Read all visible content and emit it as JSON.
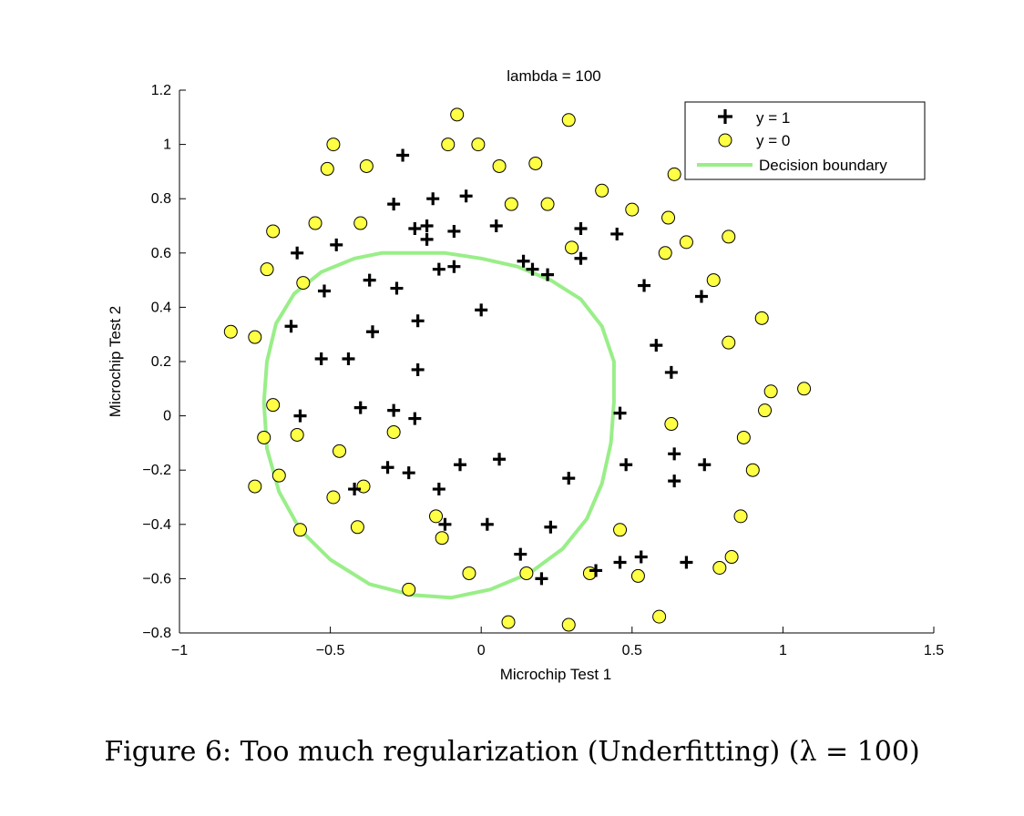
{
  "chart_data": {
    "type": "scatter",
    "title": "lambda = 100",
    "xlabel": "Microchip Test 1",
    "ylabel": "Microchip Test 2",
    "xlim": [
      -1,
      1.5
    ],
    "ylim": [
      -0.8,
      1.2
    ],
    "xticks": [
      -1,
      -0.5,
      0,
      0.5,
      1,
      1.5
    ],
    "xtick_labels": [
      "−1",
      "−0.5",
      "0",
      "0.5",
      "1",
      "1.5"
    ],
    "yticks": [
      -0.8,
      -0.6,
      -0.4,
      -0.2,
      0,
      0.2,
      0.4,
      0.6,
      0.8,
      1,
      1.2
    ],
    "ytick_labels": [
      "−0.8",
      "−0.6",
      "−0.4",
      "−0.2",
      "0",
      "0.2",
      "0.4",
      "0.6",
      "0.8",
      "1",
      "1.2"
    ],
    "grid": false,
    "legend_position": "top-right",
    "series": [
      {
        "name": "y = 1",
        "marker": "plus",
        "color": "#000000",
        "points": [
          [
            -0.26,
            0.96
          ],
          [
            -0.29,
            0.78
          ],
          [
            -0.16,
            0.8
          ],
          [
            -0.05,
            0.81
          ],
          [
            -0.22,
            0.69
          ],
          [
            -0.18,
            0.7
          ],
          [
            -0.09,
            0.68
          ],
          [
            0.05,
            0.7
          ],
          [
            0.33,
            0.69
          ],
          [
            0.45,
            0.67
          ],
          [
            -0.18,
            0.65
          ],
          [
            -0.48,
            0.63
          ],
          [
            -0.61,
            0.6
          ],
          [
            0.14,
            0.57
          ],
          [
            0.17,
            0.54
          ],
          [
            0.22,
            0.52
          ],
          [
            0.33,
            0.58
          ],
          [
            -0.14,
            0.54
          ],
          [
            -0.09,
            0.55
          ],
          [
            -0.37,
            0.5
          ],
          [
            -0.28,
            0.47
          ],
          [
            -0.52,
            0.46
          ],
          [
            0.54,
            0.48
          ],
          [
            0.73,
            0.44
          ],
          [
            0.0,
            0.39
          ],
          [
            -0.21,
            0.35
          ],
          [
            -0.63,
            0.33
          ],
          [
            -0.36,
            0.31
          ],
          [
            0.58,
            0.26
          ],
          [
            -0.53,
            0.21
          ],
          [
            -0.44,
            0.21
          ],
          [
            -0.21,
            0.17
          ],
          [
            0.63,
            0.16
          ],
          [
            -0.4,
            0.03
          ],
          [
            -0.29,
            0.02
          ],
          [
            -0.6,
            0.0
          ],
          [
            -0.22,
            -0.01
          ],
          [
            0.46,
            0.01
          ],
          [
            0.06,
            -0.16
          ],
          [
            -0.07,
            -0.18
          ],
          [
            0.48,
            -0.18
          ],
          [
            -0.31,
            -0.19
          ],
          [
            -0.24,
            -0.21
          ],
          [
            0.29,
            -0.23
          ],
          [
            0.64,
            -0.14
          ],
          [
            0.74,
            -0.18
          ],
          [
            0.64,
            -0.24
          ],
          [
            -0.14,
            -0.27
          ],
          [
            -0.42,
            -0.27
          ],
          [
            -0.12,
            -0.4
          ],
          [
            0.02,
            -0.4
          ],
          [
            0.23,
            -0.41
          ],
          [
            0.13,
            -0.51
          ],
          [
            0.2,
            -0.6
          ],
          [
            0.38,
            -0.57
          ],
          [
            0.46,
            -0.54
          ],
          [
            0.53,
            -0.52
          ],
          [
            0.68,
            -0.54
          ]
        ]
      },
      {
        "name": "y = 0",
        "marker": "circle",
        "color": "#ffff44",
        "points": [
          [
            -0.08,
            1.11
          ],
          [
            0.29,
            1.09
          ],
          [
            -0.49,
            1.0
          ],
          [
            -0.11,
            1.0
          ],
          [
            -0.01,
            1.0
          ],
          [
            -0.51,
            0.91
          ],
          [
            -0.38,
            0.92
          ],
          [
            0.06,
            0.92
          ],
          [
            0.18,
            0.93
          ],
          [
            0.64,
            0.89
          ],
          [
            0.4,
            0.83
          ],
          [
            0.1,
            0.78
          ],
          [
            0.22,
            0.78
          ],
          [
            0.5,
            0.76
          ],
          [
            -0.69,
            0.68
          ],
          [
            -0.55,
            0.71
          ],
          [
            -0.4,
            0.71
          ],
          [
            0.62,
            0.73
          ],
          [
            0.82,
            0.66
          ],
          [
            0.68,
            0.64
          ],
          [
            0.3,
            0.62
          ],
          [
            0.61,
            0.6
          ],
          [
            -0.71,
            0.54
          ],
          [
            -0.59,
            0.49
          ],
          [
            0.77,
            0.5
          ],
          [
            0.93,
            0.36
          ],
          [
            -0.83,
            0.31
          ],
          [
            -0.75,
            0.29
          ],
          [
            0.82,
            0.27
          ],
          [
            0.96,
            0.09
          ],
          [
            1.07,
            0.1
          ],
          [
            0.94,
            0.02
          ],
          [
            -0.69,
            0.04
          ],
          [
            -0.61,
            -0.07
          ],
          [
            -0.29,
            -0.06
          ],
          [
            0.63,
            -0.03
          ],
          [
            -0.72,
            -0.08
          ],
          [
            0.87,
            -0.08
          ],
          [
            -0.47,
            -0.13
          ],
          [
            -0.67,
            -0.22
          ],
          [
            -0.75,
            -0.26
          ],
          [
            -0.39,
            -0.26
          ],
          [
            0.9,
            -0.2
          ],
          [
            -0.49,
            -0.3
          ],
          [
            -0.15,
            -0.37
          ],
          [
            0.86,
            -0.37
          ],
          [
            -0.6,
            -0.42
          ],
          [
            -0.41,
            -0.41
          ],
          [
            0.46,
            -0.42
          ],
          [
            -0.13,
            -0.45
          ],
          [
            0.15,
            -0.58
          ],
          [
            0.36,
            -0.58
          ],
          [
            -0.04,
            -0.58
          ],
          [
            0.52,
            -0.59
          ],
          [
            0.83,
            -0.52
          ],
          [
            0.79,
            -0.56
          ],
          [
            -0.24,
            -0.64
          ],
          [
            0.09,
            -0.76
          ],
          [
            0.29,
            -0.77
          ],
          [
            0.59,
            -0.74
          ]
        ]
      },
      {
        "name": "Decision boundary",
        "marker": "line",
        "color": "#99ee88",
        "points": [
          [
            -0.25,
            0.6
          ],
          [
            -0.12,
            0.6
          ],
          [
            0.0,
            0.58
          ],
          [
            0.12,
            0.55
          ],
          [
            0.23,
            0.5
          ],
          [
            0.33,
            0.43
          ],
          [
            0.4,
            0.33
          ],
          [
            0.44,
            0.2
          ],
          [
            0.44,
            0.05
          ],
          [
            0.43,
            -0.1
          ],
          [
            0.4,
            -0.25
          ],
          [
            0.35,
            -0.38
          ],
          [
            0.27,
            -0.49
          ],
          [
            0.16,
            -0.58
          ],
          [
            0.03,
            -0.64
          ],
          [
            -0.1,
            -0.67
          ],
          [
            -0.23,
            -0.66
          ],
          [
            -0.37,
            -0.62
          ],
          [
            -0.5,
            -0.53
          ],
          [
            -0.6,
            -0.42
          ],
          [
            -0.67,
            -0.28
          ],
          [
            -0.71,
            -0.12
          ],
          [
            -0.72,
            0.05
          ],
          [
            -0.71,
            0.2
          ],
          [
            -0.68,
            0.34
          ],
          [
            -0.62,
            0.45
          ],
          [
            -0.53,
            0.53
          ],
          [
            -0.42,
            0.58
          ],
          [
            -0.33,
            0.6
          ],
          [
            -0.25,
            0.6
          ]
        ]
      }
    ]
  },
  "caption": "Figure 6: Too much regularization (Underfitting) (λ = 100)"
}
